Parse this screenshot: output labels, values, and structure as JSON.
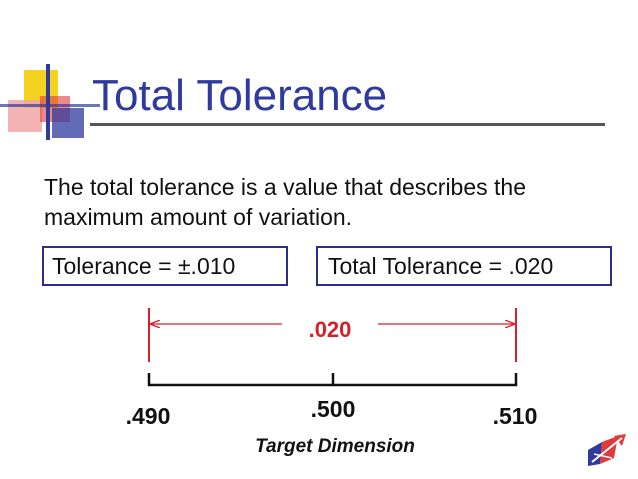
{
  "slide": {
    "title": "Total Tolerance",
    "intro": "The total tolerance is a value that describes the maximum amount of variation."
  },
  "boxes": {
    "tolerance": "Tolerance = ±.010",
    "total_tolerance": "Total Tolerance = .020"
  },
  "diagram": {
    "span_label": ".020",
    "low_label": ".490",
    "mid_label": ".500",
    "high_label": ".510",
    "axis_caption": "Target Dimension"
  },
  "colors": {
    "title": "#2f3a9e",
    "box_border": "#2b2e8c",
    "dimension_red": "#d9202a",
    "text": "#111111",
    "logo_yellow": "#f5d21f",
    "logo_blue": "#2f3a9e",
    "logo_red": "#e23a3a",
    "logo_pink": "#f2a6a6"
  },
  "icons": {
    "corner_logo": "colored-squares-logo",
    "bottom_logo": "ship-arrow-logo"
  }
}
